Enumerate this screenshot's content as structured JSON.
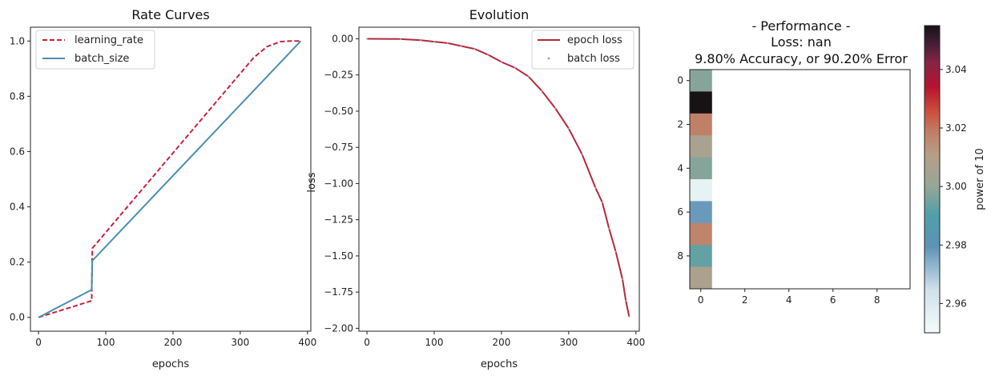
{
  "chart_data": [
    {
      "type": "line",
      "title": "Rate Curves",
      "xlabel": "epochs",
      "ylabel": "",
      "xlim": [
        -12,
        405
      ],
      "ylim": [
        -0.05,
        1.05
      ],
      "xticks": [
        0,
        100,
        200,
        300,
        400
      ],
      "yticks": [
        0.0,
        0.2,
        0.4,
        0.6,
        0.8,
        1.0
      ],
      "xtick_labels": [
        "0",
        "100",
        "200",
        "300",
        "400"
      ],
      "ytick_labels": [
        "0.0",
        "0.2",
        "0.4",
        "0.6",
        "0.8",
        "1.0"
      ],
      "legend": "top-left",
      "series": [
        {
          "name": "learning_rate",
          "style": "dashed",
          "color": "#c8203c",
          "x": [
            0,
            79,
            80,
            320,
            340,
            360,
            375,
            390
          ],
          "y": [
            0.0,
            0.06,
            0.25,
            0.94,
            0.98,
            0.998,
            1.0,
            1.0
          ]
        },
        {
          "name": "batch_size",
          "style": "solid",
          "color": "#4a8fb0",
          "x": [
            0,
            79,
            80,
            390
          ],
          "y": [
            0.0,
            0.1,
            0.205,
            1.0
          ]
        }
      ]
    },
    {
      "type": "line",
      "title": "Evolution",
      "xlabel": "epochs",
      "ylabel": "loss",
      "xlim": [
        -12,
        405
      ],
      "ylim": [
        -2.02,
        0.08
      ],
      "xticks": [
        0,
        100,
        200,
        300,
        400
      ],
      "yticks": [
        0.0,
        -0.25,
        -0.5,
        -0.75,
        -1.0,
        -1.25,
        -1.5,
        -1.75,
        -2.0
      ],
      "xtick_labels": [
        "0",
        "100",
        "200",
        "300",
        "400"
      ],
      "ytick_labels": [
        "0.00",
        "−0.25",
        "−0.50",
        "−0.75",
        "−1.00",
        "−1.25",
        "−1.50",
        "−1.75",
        "−2.00"
      ],
      "legend": "top-right",
      "series": [
        {
          "name": "epoch loss",
          "style": "solid",
          "color": "#b5283c",
          "x": [
            0,
            50,
            80,
            100,
            120,
            140,
            160,
            180,
            200,
            220,
            240,
            260,
            280,
            300,
            320,
            340,
            350,
            360,
            370,
            380,
            385,
            390
          ],
          "y": [
            0.0,
            -0.002,
            -0.01,
            -0.02,
            -0.03,
            -0.05,
            -0.07,
            -0.11,
            -0.16,
            -0.2,
            -0.26,
            -0.36,
            -0.48,
            -0.62,
            -0.8,
            -1.03,
            -1.13,
            -1.31,
            -1.47,
            -1.66,
            -1.81,
            -1.92
          ]
        },
        {
          "name": "batch loss",
          "style": "points",
          "color": "#aaaaaa",
          "x": [
            0,
            50,
            80,
            100,
            120,
            140,
            160,
            180,
            200,
            220,
            240,
            260,
            280,
            300,
            320,
            340,
            350,
            360,
            370,
            380,
            385,
            390
          ],
          "y": [
            0.0,
            -0.002,
            -0.01,
            -0.02,
            -0.03,
            -0.05,
            -0.07,
            -0.11,
            -0.16,
            -0.2,
            -0.26,
            -0.36,
            -0.48,
            -0.62,
            -0.8,
            -1.03,
            -1.13,
            -1.31,
            -1.47,
            -1.66,
            -1.81,
            -1.92
          ]
        }
      ]
    },
    {
      "type": "heatmap",
      "title_lines": [
        "- Performance -",
        "Loss: nan",
        "9.80% Accuracy, or 90.20% Error"
      ],
      "xticks": [
        0,
        2,
        4,
        6,
        8
      ],
      "yticks": [
        0,
        2,
        4,
        6,
        8
      ],
      "xtick_labels": [
        "0",
        "2",
        "4",
        "6",
        "8"
      ],
      "ytick_labels": [
        "0",
        "2",
        "4",
        "6",
        "8"
      ],
      "grid_size": 10,
      "column": 0,
      "values": [
        2.998,
        3.055,
        3.018,
        3.006,
        2.998,
        2.955,
        2.978,
        3.017,
        2.993,
        3.007
      ],
      "colorbar": {
        "label": "power of 10",
        "range": [
          2.95,
          3.055
        ],
        "ticks": [
          2.96,
          2.98,
          3.0,
          3.02,
          3.04
        ],
        "tick_labels": [
          "2.96",
          "2.98",
          "3.00",
          "3.02",
          "3.04"
        ],
        "stops": [
          {
            "v": 0.0,
            "c": "#f4fbfb"
          },
          {
            "v": 0.14,
            "c": "#cfe1ea"
          },
          {
            "v": 0.28,
            "c": "#5e93b6"
          },
          {
            "v": 0.38,
            "c": "#4e9fa9"
          },
          {
            "v": 0.48,
            "c": "#97a796"
          },
          {
            "v": 0.58,
            "c": "#b79e88"
          },
          {
            "v": 0.66,
            "c": "#c27a62"
          },
          {
            "v": 0.72,
            "c": "#cb4f3c"
          },
          {
            "v": 0.8,
            "c": "#b8122e"
          },
          {
            "v": 0.88,
            "c": "#852446"
          },
          {
            "v": 0.95,
            "c": "#3c1d33"
          },
          {
            "v": 1.0,
            "c": "#171214"
          }
        ]
      }
    }
  ]
}
